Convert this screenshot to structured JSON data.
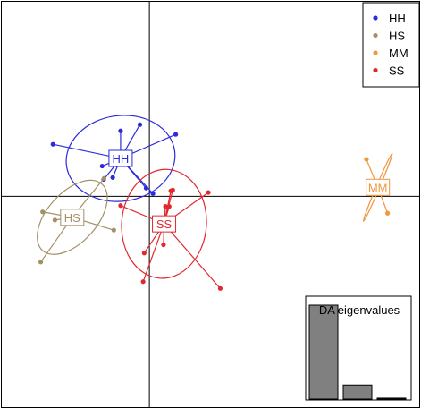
{
  "chart_data": {
    "type": "scatter",
    "xlim": [
      -5.5,
      10.0
    ],
    "ylim": [
      -7.8,
      7.2
    ],
    "axes_origin": [
      0,
      0
    ],
    "grid": false,
    "legend": {
      "placement": "top-right",
      "entries": [
        {
          "name": "HH",
          "color": "#2b2bdc"
        },
        {
          "name": "HS",
          "color": "#a39065"
        },
        {
          "name": "MM",
          "color": "#f0963c"
        },
        {
          "name": "SS",
          "color": "#e0292f"
        }
      ]
    },
    "series": [
      {
        "name": "HH",
        "color": "#2b2bdc",
        "centroid": [
          -1.06,
          1.39
        ],
        "ellipse": {
          "rx": 2.01,
          "ry": 1.57,
          "angle": -8
        },
        "points": [
          [
            -3.55,
            1.91
          ],
          [
            -1.06,
            2.4
          ],
          [
            -0.35,
            2.63
          ],
          [
            0.97,
            2.27
          ],
          [
            -1.74,
            1.11
          ],
          [
            -1.35,
            0.69
          ],
          [
            -1.68,
            0.62
          ],
          [
            0.13,
            0.1
          ],
          [
            -0.12,
            0.3
          ]
        ]
      },
      {
        "name": "HS",
        "color": "#a39065",
        "centroid": [
          -2.84,
          -0.77
        ],
        "ellipse": {
          "rx": 1.64,
          "ry": 0.91,
          "angle": -48
        },
        "points": [
          [
            -3.93,
            -0.57
          ],
          [
            -3.48,
            -0.87
          ],
          [
            -4.0,
            -2.41
          ],
          [
            -1.31,
            -1.24
          ],
          [
            -1.67,
            0.66
          ]
        ]
      },
      {
        "name": "MM",
        "color": "#f0963c",
        "centroid": [
          8.41,
          0.33
        ],
        "ellipse": {
          "rx": 1.36,
          "ry": 0.06,
          "angle": -67
        },
        "points": [
          [
            7.99,
            1.36
          ],
          [
            8.77,
            -0.62
          ]
        ]
      },
      {
        "name": "SS",
        "color": "#e0292f",
        "centroid": [
          0.54,
          -1.01
        ],
        "ellipse": {
          "rx": 1.56,
          "ry": 2.0,
          "angle": 5
        },
        "points": [
          [
            0.79,
            0.2
          ],
          [
            0.86,
            0.23
          ],
          [
            2.17,
            0.14
          ],
          [
            -1.06,
            -0.34
          ],
          [
            0.73,
            -0.37
          ],
          [
            0.59,
            -0.37
          ],
          [
            0.52,
            -1.78
          ],
          [
            -0.19,
            -2.08
          ],
          [
            -0.23,
            -3.13
          ],
          [
            2.61,
            -3.38
          ]
        ]
      }
    ],
    "inset": {
      "type": "bar",
      "title": "DA eigenvalues",
      "values": [
        100,
        15,
        1
      ],
      "ylim": [
        0,
        100
      ]
    }
  }
}
